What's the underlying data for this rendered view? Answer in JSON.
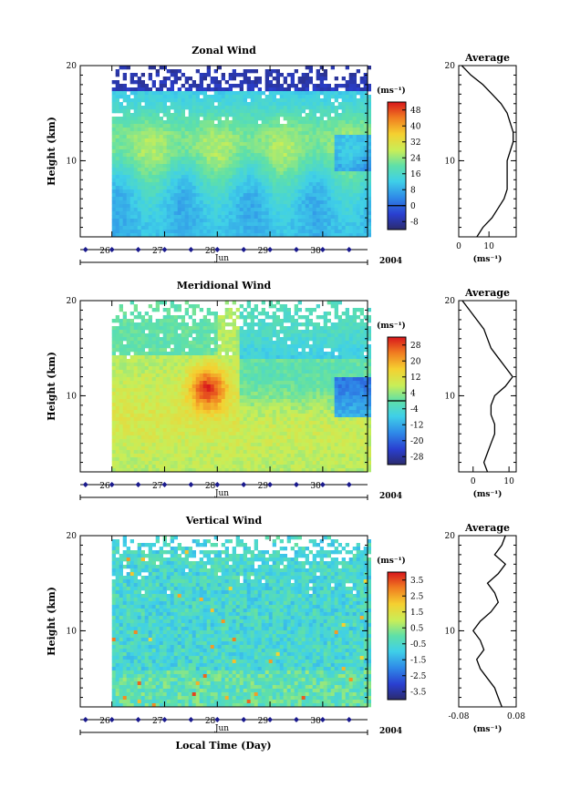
{
  "figure": {
    "xlabel": "Local Time (Day)",
    "month": "Jun",
    "year": "2004"
  },
  "colors": {
    "bg": "#ffffff",
    "axis": "#000000",
    "datebar": "#1a1a8c"
  },
  "chart_data": [
    {
      "type": "heatmap",
      "title": "Zonal Wind",
      "ylabel": "Height (km)",
      "ylim": [
        2,
        20
      ],
      "yticks": [
        "10",
        "20"
      ],
      "xlim": [
        25.4,
        30.85
      ],
      "xticks": [
        "26",
        "27",
        "28",
        "29",
        "30"
      ],
      "x_data_start": 26.0,
      "colorbar": {
        "unit": "(ms⁻¹)",
        "ticks": [
          "48",
          "40",
          "32",
          "24",
          "16",
          "8",
          "0",
          "-8"
        ],
        "vmin": -12,
        "vmax": 52,
        "zero_line": 0
      },
      "profile": {
        "title": "Average",
        "xlabel": "(ms⁻¹)",
        "xticks": [
          "0",
          "10"
        ],
        "xlim": [
          0,
          19
        ],
        "yticks": [
          "10",
          "20"
        ],
        "heights": [
          2,
          3,
          4,
          5,
          6,
          7,
          8,
          9,
          10,
          11,
          12,
          13,
          14,
          15,
          16,
          17,
          18,
          19,
          20
        ],
        "values": [
          6,
          8,
          11,
          13,
          15,
          16,
          16,
          16,
          16,
          17,
          18,
          18,
          17,
          16,
          14,
          11,
          8,
          4,
          1
        ]
      }
    },
    {
      "type": "heatmap",
      "title": "Meridional Wind",
      "ylabel": "Height (km)",
      "ylim": [
        2,
        20
      ],
      "yticks": [
        "10",
        "20"
      ],
      "xlim": [
        25.4,
        30.85
      ],
      "xticks": [
        "26",
        "27",
        "28",
        "29",
        "30"
      ],
      "x_data_start": 26.0,
      "colorbar": {
        "unit": "(ms⁻¹)",
        "ticks": [
          "28",
          "20",
          "12",
          "4",
          "-4",
          "-12",
          "-20",
          "-28"
        ],
        "vmin": -32,
        "vmax": 32,
        "zero_line": 0
      },
      "profile": {
        "title": "Average",
        "xlabel": "(ms⁻¹)",
        "xticks": [
          "0",
          "10"
        ],
        "xlim": [
          -4,
          12
        ],
        "yticks": [
          "10",
          "20"
        ],
        "heights": [
          2,
          3,
          4,
          5,
          6,
          7,
          8,
          9,
          10,
          11,
          12,
          13,
          14,
          15,
          16,
          17,
          18,
          19,
          20
        ],
        "values": [
          4,
          3,
          4,
          5,
          6,
          6,
          5,
          5,
          6,
          9,
          11,
          9,
          7,
          5,
          4,
          3,
          1,
          -1,
          -3
        ]
      }
    },
    {
      "type": "heatmap",
      "title": "Vertical Wind",
      "ylabel": "Height (km)",
      "ylim": [
        2,
        20
      ],
      "yticks": [
        "10",
        "20"
      ],
      "xlim": [
        25.4,
        30.85
      ],
      "xticks": [
        "26",
        "27",
        "28",
        "29",
        "30"
      ],
      "x_data_start": 26.0,
      "colorbar": {
        "unit": "(ms⁻¹)",
        "ticks": [
          "3.5",
          "2.5",
          "1.5",
          "0.5",
          "-0.5",
          "-1.5",
          "-2.5",
          "-3.5"
        ],
        "vmin": -4,
        "vmax": 4,
        "zero_line": null
      },
      "profile": {
        "title": "Average",
        "xlabel": "(ms⁻¹)",
        "xticks": [
          "-0.08",
          "0.08"
        ],
        "xlim": [
          -0.08,
          0.08
        ],
        "yticks": [
          "10",
          "20"
        ],
        "heights": [
          2,
          3,
          4,
          5,
          6,
          7,
          8,
          9,
          10,
          11,
          12,
          13,
          14,
          15,
          16,
          17,
          18,
          19,
          20
        ],
        "values": [
          0.04,
          0.03,
          0.02,
          0.0,
          -0.02,
          -0.03,
          -0.01,
          -0.02,
          -0.04,
          -0.02,
          0.01,
          0.03,
          0.02,
          0.0,
          0.03,
          0.05,
          0.02,
          0.04,
          0.05
        ]
      }
    }
  ]
}
